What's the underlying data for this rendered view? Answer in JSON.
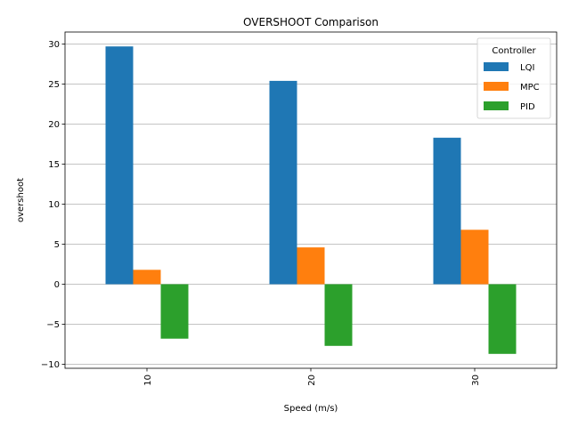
{
  "chart_data": {
    "type": "bar",
    "title": "OVERSHOOT Comparison",
    "xlabel": "Speed (m/s)",
    "ylabel": "overshoot",
    "categories": [
      "10",
      "20",
      "30"
    ],
    "series": [
      {
        "name": "LQI",
        "color": "#1f77b4",
        "values": [
          29.7,
          25.4,
          18.3
        ]
      },
      {
        "name": "MPC",
        "color": "#ff7f0e",
        "values": [
          1.8,
          4.6,
          6.8
        ]
      },
      {
        "name": "PID",
        "color": "#2ca02c",
        "values": [
          -6.8,
          -7.7,
          -8.7
        ]
      }
    ],
    "ylim": [
      -10.5,
      31.5
    ],
    "yticks": [
      -10,
      -5,
      0,
      5,
      10,
      15,
      20,
      25,
      30
    ],
    "ytick_labels": [
      "−10",
      "−5",
      "0",
      "5",
      "10",
      "15",
      "20",
      "25",
      "30"
    ],
    "grid": "y",
    "legend": {
      "title": "Controller",
      "position": "top-right"
    }
  }
}
